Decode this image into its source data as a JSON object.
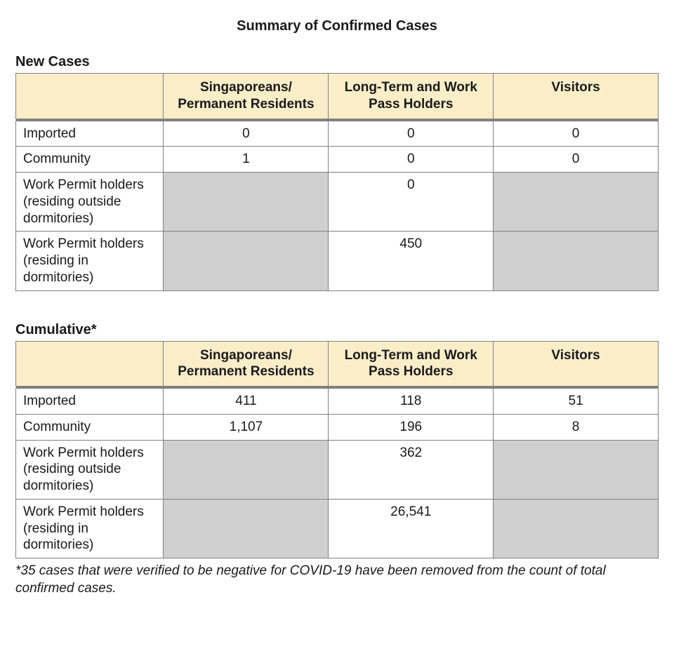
{
  "title": "Summary of Confirmed Cases",
  "colors": {
    "header_bg": "#faeec9",
    "na_bg": "#cfcfcf",
    "border": "#808080",
    "text": "#1a1a1a",
    "page_bg": "#ffffff"
  },
  "typography": {
    "font_family": "Arial, Helvetica, sans-serif",
    "title_fontsize_pt": 15,
    "section_fontsize_pt": 15,
    "cell_fontsize_pt": 14
  },
  "columns": [
    "Singaporeans/ Permanent Residents",
    "Long-Term and Work Pass Holders",
    "Visitors"
  ],
  "sections": {
    "new_cases": {
      "title": "New Cases",
      "rows": [
        {
          "label": "Imported",
          "values": [
            "0",
            "0",
            "0"
          ],
          "na": [
            false,
            false,
            false
          ]
        },
        {
          "label": "Community",
          "values": [
            "1",
            "0",
            "0"
          ],
          "na": [
            false,
            false,
            false
          ]
        },
        {
          "label": "Work Permit holders (residing outside dormitories)",
          "values": [
            "",
            "0",
            ""
          ],
          "na": [
            true,
            false,
            true
          ]
        },
        {
          "label": "Work Permit holders (residing in dormitories)",
          "values": [
            "",
            "450",
            ""
          ],
          "na": [
            true,
            false,
            true
          ]
        }
      ]
    },
    "cumulative": {
      "title": "Cumulative*",
      "rows": [
        {
          "label": "Imported",
          "values": [
            "411",
            "118",
            "51"
          ],
          "na": [
            false,
            false,
            false
          ]
        },
        {
          "label": "Community",
          "values": [
            "1,107",
            "196",
            "8"
          ],
          "na": [
            false,
            false,
            false
          ]
        },
        {
          "label": "Work Permit holders (residing outside dormitories)",
          "values": [
            "",
            "362",
            ""
          ],
          "na": [
            true,
            false,
            true
          ]
        },
        {
          "label": "Work Permit holders (residing in dormitories)",
          "values": [
            "",
            "26,541",
            ""
          ],
          "na": [
            true,
            false,
            true
          ]
        }
      ]
    }
  },
  "footnote": "*35 cases that were verified to be negative for COVID-19 have been removed from the count of total confirmed cases."
}
